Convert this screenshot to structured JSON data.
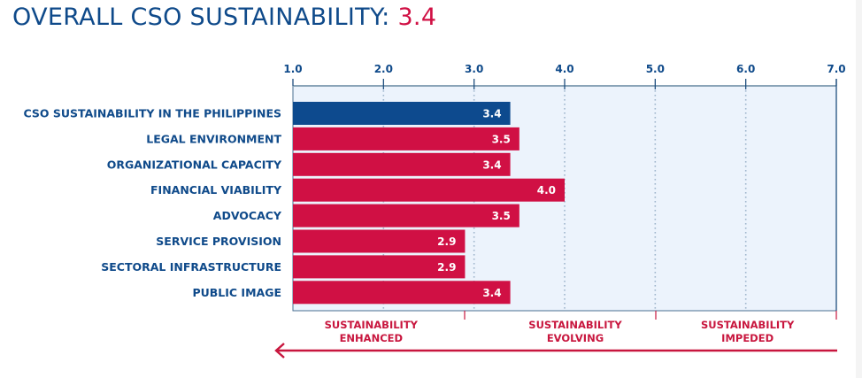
{
  "title": {
    "text": "OVERALL CSO SUSTAINABILITY: ",
    "value": "3.4"
  },
  "colors": {
    "primary_bar": "#0d4a8e",
    "dimension_bar": "#d01044",
    "text_blue": "#0f4a8a",
    "accent_red": "#c8163e",
    "plot_bg": "#ecf3fc"
  },
  "chart_data": {
    "type": "bar",
    "orientation": "horizontal",
    "title": "OVERALL CSO SUSTAINABILITY: 3.4",
    "xlabel": "",
    "ylabel": "",
    "xlim": [
      1.0,
      7.0
    ],
    "x_ticks": [
      "1.0",
      "2.0",
      "3.0",
      "4.0",
      "5.0",
      "6.0",
      "7.0"
    ],
    "grid": true,
    "categories": [
      "CSO SUSTAINABILITY IN THE PHILIPPINES",
      "LEGAL ENVIRONMENT",
      "ORGANIZATIONAL CAPACITY",
      "FINANCIAL VIABILITY",
      "ADVOCACY",
      "SERVICE PROVISION",
      "SECTORAL INFRASTRUCTURE",
      "PUBLIC IMAGE"
    ],
    "values": [
      3.4,
      3.5,
      3.4,
      4.0,
      3.5,
      2.9,
      2.9,
      3.4
    ],
    "value_labels": [
      "3.4",
      "3.5",
      "3.4",
      "4.0",
      "3.5",
      "2.9",
      "2.9",
      "3.4"
    ],
    "highlight_index": 0,
    "zones": [
      {
        "line1": "SUSTAINABILITY",
        "line2": "ENHANCED",
        "range": [
          1.0,
          3.0
        ]
      },
      {
        "line1": "SUSTAINABILITY",
        "line2": "EVOLVING",
        "range": [
          3.0,
          5.0
        ]
      },
      {
        "line1": "SUSTAINABILITY",
        "line2": "IMPEDED",
        "range": [
          5.0,
          7.0
        ]
      }
    ],
    "arrow_direction": "left"
  }
}
